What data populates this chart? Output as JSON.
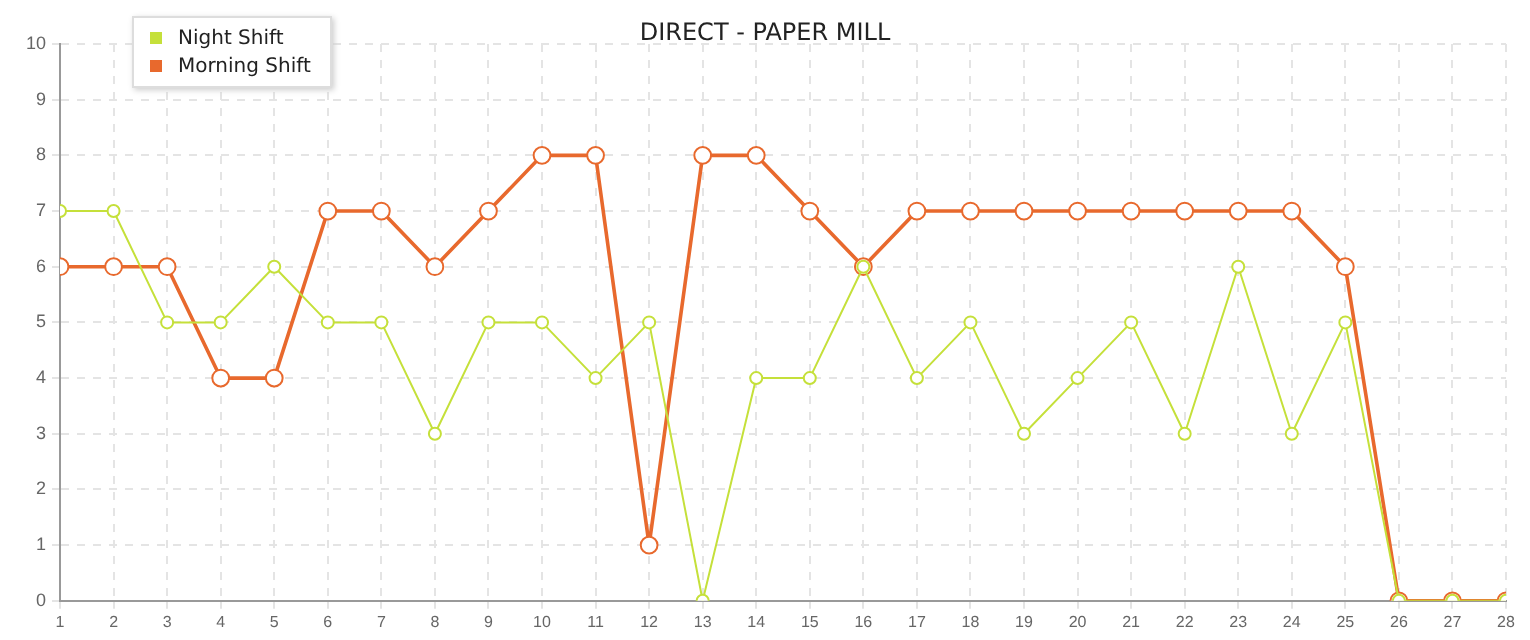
{
  "chart_data": {
    "type": "line",
    "title": "DIRECT - PAPER MILL",
    "x": [
      1,
      2,
      3,
      4,
      5,
      6,
      7,
      8,
      9,
      10,
      11,
      12,
      13,
      14,
      15,
      16,
      17,
      18,
      19,
      20,
      21,
      22,
      23,
      24,
      25,
      26,
      27,
      28
    ],
    "xlim": [
      1,
      28
    ],
    "xticks": [
      1,
      2,
      3,
      4,
      5,
      6,
      7,
      8,
      9,
      10,
      11,
      12,
      13,
      14,
      15,
      16,
      17,
      18,
      19,
      20,
      21,
      22,
      23,
      24,
      25,
      26,
      27,
      28
    ],
    "series": [
      {
        "name": "Night Shift",
        "color": "#c5e03a",
        "values": [
          7,
          7,
          5,
          5,
          6,
          5,
          5,
          3,
          5,
          5,
          4,
          5,
          0,
          4,
          4,
          6,
          4,
          5,
          3,
          4,
          5,
          3,
          6,
          3,
          5,
          0,
          0,
          0
        ]
      },
      {
        "name": "Morning Shift",
        "color": "#e8692d",
        "values": [
          6,
          6,
          6,
          4,
          4,
          7,
          7,
          6,
          7,
          8,
          8,
          1,
          8,
          8,
          7,
          6,
          7,
          7,
          7,
          7,
          7,
          7,
          7,
          7,
          6,
          0,
          0,
          0
        ]
      }
    ],
    "ylim": [
      0,
      10
    ],
    "yticks": [
      0,
      1,
      2,
      3,
      4,
      5,
      6,
      7,
      8,
      9,
      10
    ],
    "grid": true,
    "legend": "top left",
    "marker": "circle",
    "line_style": "solid"
  }
}
